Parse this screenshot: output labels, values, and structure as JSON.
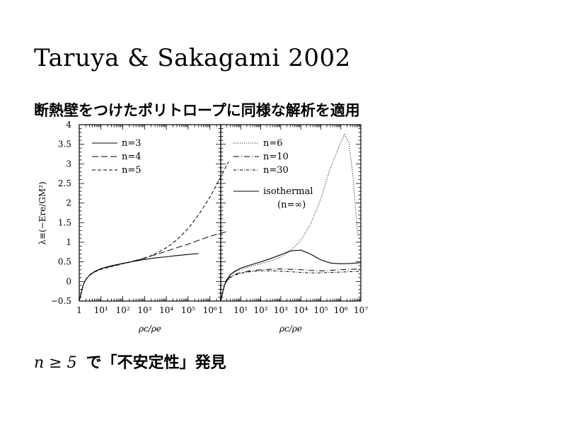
{
  "slide": {
    "title": "Taruya & Sakagami 2002",
    "subtitle": "断熱壁をつけたポリトロープに同様な解析を適用",
    "conclusion_math": "n ≥ 5",
    "conclusion_text": "で「不安定性」発見"
  },
  "chart_data": [
    {
      "type": "line",
      "panel": "left",
      "xlabel": "ρc/ρe",
      "ylabel": "λ≡(−Ere/GM²)",
      "x_scale": "log",
      "xlim": [
        1,
        10000000
      ],
      "ylim": [
        -0.5,
        4
      ],
      "x_ticks": [
        "1",
        "10¹",
        "10²",
        "10³",
        "10⁴",
        "10⁵",
        "10⁶"
      ],
      "y_ticks": [
        "−0.5",
        "0",
        "0.5",
        "1",
        "1.5",
        "2",
        "2.5",
        "3",
        "3.5",
        "4"
      ],
      "legend_position": "top-left",
      "series": [
        {
          "name": "n=3",
          "style": "solid",
          "x": [
            1,
            1.5,
            2,
            3,
            5,
            10,
            30,
            100,
            300,
            1000,
            3000,
            10000,
            30000,
            100000,
            300000
          ],
          "y": [
            -0.5,
            -0.1,
            0.05,
            0.16,
            0.25,
            0.33,
            0.4,
            0.46,
            0.51,
            0.56,
            0.6,
            0.63,
            0.66,
            0.69,
            0.71
          ]
        },
        {
          "name": "n=4",
          "style": "long-dash",
          "x": [
            1,
            1.5,
            2,
            3,
            5,
            10,
            30,
            100,
            300,
            1000,
            3000,
            10000,
            30000,
            100000,
            300000,
            1000000,
            3000000,
            7000000
          ],
          "y": [
            -0.5,
            -0.1,
            0.05,
            0.17,
            0.25,
            0.32,
            0.39,
            0.46,
            0.52,
            0.6,
            0.68,
            0.77,
            0.86,
            0.95,
            1.05,
            1.15,
            1.23,
            1.28
          ]
        },
        {
          "name": "n=5",
          "style": "dash",
          "x": [
            1,
            1.5,
            2,
            3,
            5,
            10,
            30,
            100,
            300,
            1000,
            3000,
            10000,
            30000,
            100000,
            300000,
            1000000,
            3000000,
            7000000
          ],
          "y": [
            -0.5,
            -0.1,
            0.05,
            0.16,
            0.24,
            0.31,
            0.38,
            0.45,
            0.51,
            0.59,
            0.7,
            0.86,
            1.06,
            1.35,
            1.7,
            2.15,
            2.65,
            3.05
          ]
        }
      ]
    },
    {
      "type": "line",
      "panel": "right",
      "xlabel": "ρc/ρe",
      "x_scale": "log",
      "xlim": [
        1,
        10000000
      ],
      "ylim": [
        -0.5,
        4
      ],
      "x_ticks": [
        "1",
        "10¹",
        "10²",
        "10³",
        "10⁴",
        "10⁵",
        "10⁶",
        "10⁷"
      ],
      "legend_position": "top-left",
      "series": [
        {
          "name": "n=6",
          "style": "dotted",
          "x": [
            1,
            1.5,
            2,
            3,
            5,
            10,
            30,
            100,
            300,
            1000,
            3000,
            10000,
            30000,
            100000,
            300000,
            1000000,
            1500000,
            2500000,
            4000000,
            7000000
          ],
          "y": [
            -0.5,
            -0.1,
            0.05,
            0.16,
            0.24,
            0.31,
            0.38,
            0.45,
            0.52,
            0.62,
            0.78,
            1.05,
            1.45,
            2.1,
            2.9,
            3.55,
            3.75,
            3.55,
            2.7,
            1.15
          ]
        },
        {
          "name": "n=10",
          "style": "long-dash-dot",
          "x": [
            1,
            1.5,
            2,
            3,
            5,
            10,
            30,
            100,
            300,
            1000,
            3000,
            10000,
            30000,
            100000,
            300000,
            1000000,
            3000000,
            10000000
          ],
          "y": [
            -0.5,
            -0.12,
            0.02,
            0.12,
            0.18,
            0.23,
            0.27,
            0.3,
            0.31,
            0.32,
            0.31,
            0.3,
            0.28,
            0.27,
            0.28,
            0.3,
            0.31,
            0.32
          ]
        },
        {
          "name": "n=30",
          "style": "dash-dot",
          "x": [
            1,
            1.5,
            2,
            3,
            5,
            10,
            30,
            100,
            300,
            1000,
            3000,
            10000,
            30000,
            100000,
            300000,
            1000000,
            3000000,
            10000000
          ],
          "y": [
            -0.5,
            -0.12,
            0.01,
            0.1,
            0.16,
            0.21,
            0.25,
            0.27,
            0.27,
            0.26,
            0.25,
            0.23,
            0.22,
            0.22,
            0.23,
            0.24,
            0.25,
            0.26
          ]
        },
        {
          "name": "isothermal (n=∞)",
          "style": "solid",
          "x": [
            1,
            1.5,
            2,
            3,
            5,
            10,
            30,
            100,
            300,
            1000,
            3000,
            10000,
            30000,
            100000,
            300000,
            1000000,
            3000000,
            10000000
          ],
          "y": [
            -0.5,
            -0.1,
            0.05,
            0.17,
            0.26,
            0.34,
            0.42,
            0.5,
            0.58,
            0.68,
            0.78,
            0.8,
            0.7,
            0.55,
            0.47,
            0.45,
            0.46,
            0.48
          ]
        }
      ]
    }
  ]
}
